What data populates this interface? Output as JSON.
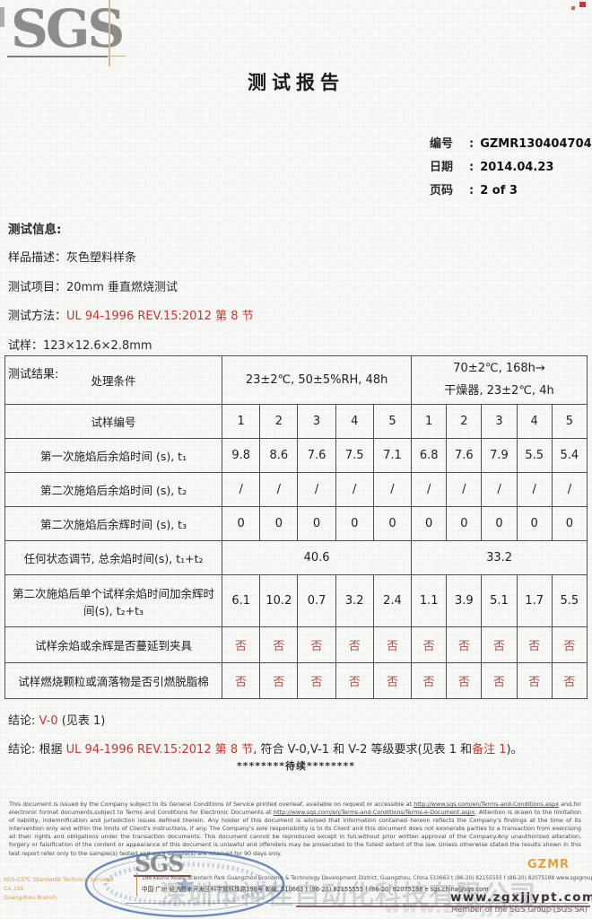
{
  "brand": {
    "logo_text": "SGS",
    "footer_logo_text": "SGS"
  },
  "header": {
    "title": "测试报告"
  },
  "meta": {
    "no_label": "编号",
    "no_value": "GZMR130404704",
    "date_label": "日期",
    "date_value": "2014.04.23",
    "page_label": "页码",
    "page_value": "2 of 3",
    "colon": ":"
  },
  "info": {
    "heading": "测试信息:",
    "sample_desc_label": "样品描述：",
    "sample_desc_value": "灰色塑料样条",
    "test_item_label": "测试项目：",
    "test_item_value": "20mm 垂直燃烧测试",
    "test_method_label": "测试方法：",
    "test_method_value": "UL 94-1996 REV.15:2012 第 8 节",
    "specimen_label": "试样：",
    "specimen_value": "123×12.6×2.8mm",
    "results_heading": "测试结果:"
  },
  "table": {
    "condition_label": "处理条件",
    "condition1": "23±2℃, 50±5%RH, 48h",
    "condition2_line1": "70±2℃, 168h→",
    "condition2_line2": "干燥器, 23±2℃, 4h",
    "specimen_row_label": "试样编号",
    "specimen_numbers": [
      "1",
      "2",
      "3",
      "4",
      "5",
      "1",
      "2",
      "3",
      "4",
      "5"
    ],
    "rows": [
      {
        "label": "第一次施焰后余焰时间 (s), t₁",
        "values": [
          "9.8",
          "8.6",
          "7.6",
          "7.5",
          "7.1",
          "6.8",
          "7.6",
          "7.9",
          "5.5",
          "5.4"
        ],
        "red": false
      },
      {
        "label": "第二次施焰后余焰时间 (s), t₂",
        "values": [
          "/",
          "/",
          "/",
          "/",
          "/",
          "/",
          "/",
          "/",
          "/",
          "/"
        ],
        "red": false
      },
      {
        "label": "第二次施焰后余辉时间 (s), t₃",
        "values": [
          "0",
          "0",
          "0",
          "0",
          "0",
          "0",
          "0",
          "0",
          "0",
          "0"
        ],
        "red": false
      },
      {
        "label": "任何状态调节, 总余焰时间(s), t₁+t₂",
        "merged": [
          "40.6",
          "33.2"
        ],
        "red": false
      },
      {
        "label": "第二次施焰后单个试样余焰时间加余辉时间(s), t₂+t₃",
        "values": [
          "6.1",
          "10.2",
          "0.7",
          "3.2",
          "2.4",
          "1.1",
          "3.9",
          "5.1",
          "1.7",
          "5.5"
        ],
        "red": false
      },
      {
        "label": "试样余焰或余辉是否蔓延到夹具",
        "values": [
          "否",
          "否",
          "否",
          "否",
          "否",
          "否",
          "否",
          "否",
          "否",
          "否"
        ],
        "red": true
      },
      {
        "label": "试样燃烧颗粒或滴落物是否引燃脱脂棉",
        "values": [
          "否",
          "否",
          "否",
          "否",
          "否",
          "否",
          "否",
          "否",
          "否",
          "否"
        ],
        "red": true
      }
    ]
  },
  "conclusions": {
    "c1_prefix": "结论: ",
    "c1_red": "V-0",
    "c1_rest": " (见表 1)",
    "c2_prefix": "结论: 根据 ",
    "c2_red1": "UL 94-1996 REV.15:2012 第 8 节",
    "c2_mid": ", 符合 V-0,V-1 和 V-2 等级要求(见表 1 和",
    "c2_red2": "备注 1",
    "c2_end": ")。",
    "continued": "********待续********"
  },
  "legal": {
    "p1": "This document is issued by the Company subject to its General Conditions of Service printed overleaf, available on request or accessible at ",
    "url1": "http://www.sgs.com/en/Terms-and-Conditions.aspx",
    "p2": " and,for electronic format documents,subject to Terms and Conditions for Electronic Documents at ",
    "url2": "http://www.sgs.com/en/Terms-and-Conditions/Terms-e-Document.aspx",
    "p3": ". Attention is drawn to the limitation of liability, indemnification and jurisdiction issues defined therein. Any holder of this document is advised that information contained hereon reflects the Company's findings at the time of its intervention only and within the limits of Client's instructions, if any. The Company's sole responsibility is to its Client and this document does not exonerate parties to a transaction from exercising all their rights and obligations under the transaction documents. This document cannot be reproduced except in full,without prior written approval of the Company.Any unauthorized alteration, forgery or falsification of the content or appearance of this document is unlawful and offenders may be prosecuted to the fullest extent of the law. Unless otherwise stated the results shown in this test report refer only to the sample(s) tested and such sample(s) are retained for 90 days only."
  },
  "footer": {
    "company_line1": "SGS-CSTC Standards Technical Services Co.,Ltd.",
    "company_line2": "Guangzhou Branch",
    "address_en": "198 Kezhu Road, Scientech Park Guangzhou Economic & Technology Development District, Guangzhou, China 510663   t (86-20) 82155555   f (86-20) 82075188   www.sgsgroup.com.cn",
    "address_cn": "中国·广州·经济技术开发区科学城科珠路198号   邮编: 510663   t (86-20) 82155555   f (86-20) 82075188   e sgs.china@sgs.com",
    "gzmr": "GZMR",
    "member": "Member of the SGS Group (SGS SA)"
  },
  "watermark": {
    "cn": "深圳市神佳自动化科技有限公司",
    "url": "www.zgxjjypt.com"
  },
  "colors": {
    "accent_red": "#c0392e",
    "no_cell_red": "#a8524a",
    "footer_orange": "#e0a23f",
    "stamp_blue": "#4a6fae",
    "logo_gray": "#8c8c8c"
  }
}
